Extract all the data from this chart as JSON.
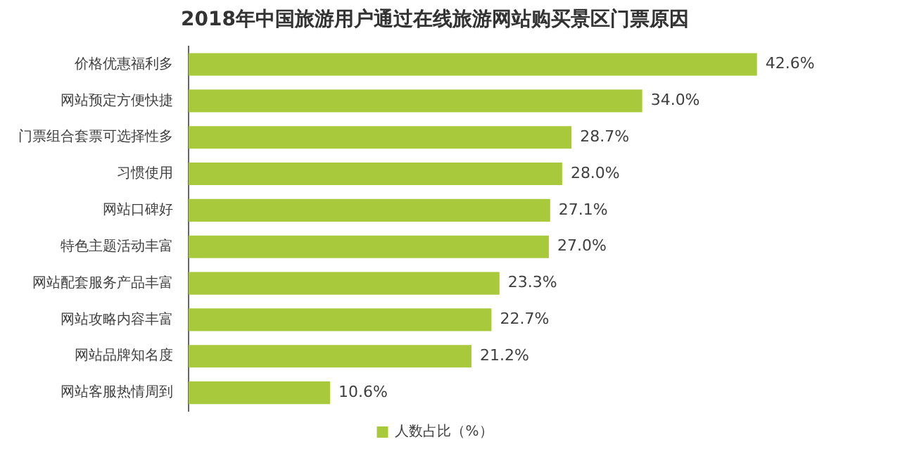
{
  "chart_data": {
    "type": "bar",
    "orientation": "horizontal",
    "title": "2018年中国旅游用户通过在线旅游网站购买景区门票原因",
    "categories": [
      "价格优惠福利多",
      "网站预定方便快捷",
      "门票组合套票可选择性多",
      "习惯使用",
      "网站口碑好",
      "特色主题活动丰富",
      "网站配套服务产品丰富",
      "网站攻略内容丰富",
      "网站品牌知名度",
      "网站客服热情周到"
    ],
    "series": [
      {
        "name": "人数占比（%）",
        "color": "#a8c93c",
        "values": [
          42.6,
          34.0,
          28.7,
          28.0,
          27.1,
          27.0,
          23.3,
          22.7,
          21.2,
          10.6
        ],
        "value_labels": [
          "42.6%",
          "34.0%",
          "28.7%",
          "28.0%",
          "27.1%",
          "27.0%",
          "23.3%",
          "22.7%",
          "21.2%",
          "10.6%"
        ]
      }
    ],
    "legend": "bottom"
  }
}
